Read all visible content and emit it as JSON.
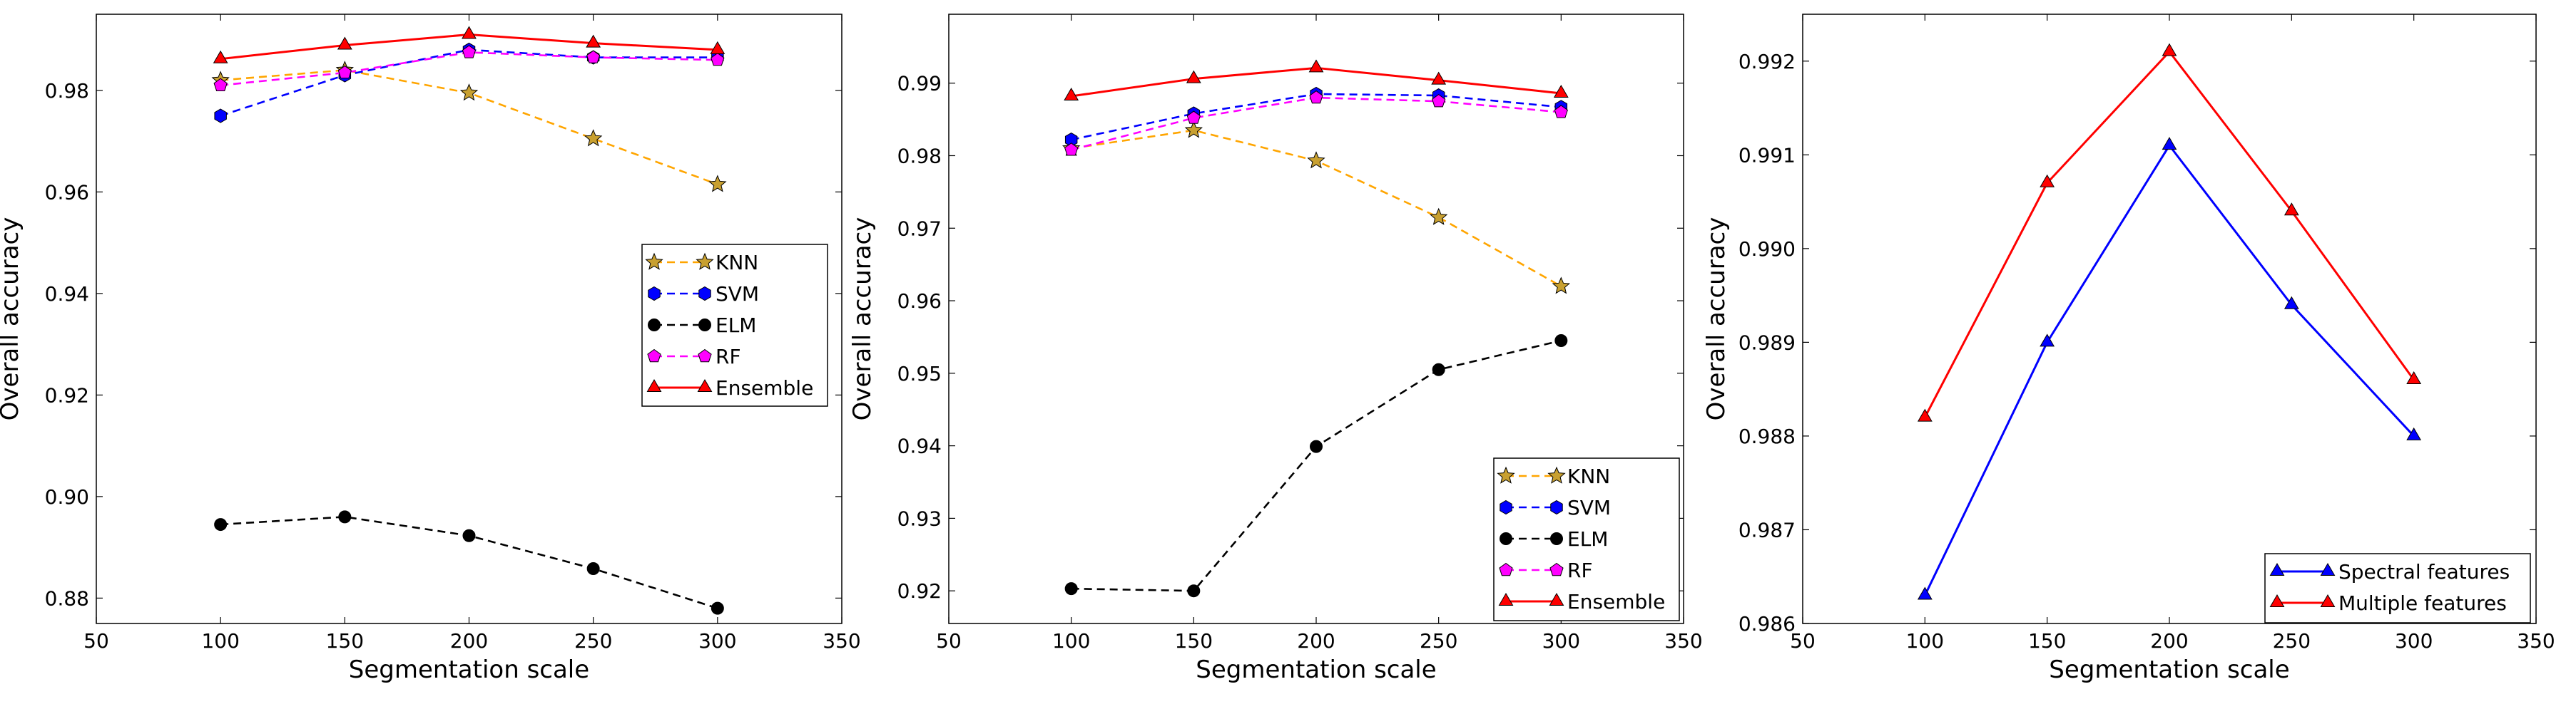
{
  "chart_data": [
    {
      "type": "line",
      "title": "",
      "xlabel": "Segmentation scale",
      "ylabel": "Overall accuracy",
      "xlim": [
        50,
        350
      ],
      "ylim": [
        0.875,
        0.995
      ],
      "xticks": [
        50,
        100,
        150,
        200,
        250,
        300,
        350
      ],
      "xtick_labels": [
        "50",
        "100",
        "150",
        "200",
        "250",
        "300",
        "350"
      ],
      "yticks": [
        0.88,
        0.9,
        0.92,
        0.94,
        0.96,
        0.98
      ],
      "ytick_labels": [
        "0.88",
        "0.90",
        "0.92",
        "0.94",
        "0.96",
        "0.98"
      ],
      "legend_position": "center-right",
      "x": [
        100,
        150,
        200,
        250,
        300
      ],
      "series": [
        {
          "name": "KNN",
          "color": "#FFA500",
          "dash": "dashed",
          "marker": "star",
          "marker_fill": "#C8A030",
          "values": [
            0.982,
            0.984,
            0.9795,
            0.9705,
            0.9615
          ]
        },
        {
          "name": "SVM",
          "color": "#0000FF",
          "dash": "dashed",
          "marker": "hexagon",
          "marker_fill": "#0000FF",
          "values": [
            0.975,
            0.983,
            0.988,
            0.9865,
            0.9865
          ]
        },
        {
          "name": "ELM",
          "color": "#000000",
          "dash": "dashed",
          "marker": "circle",
          "marker_fill": "#000000",
          "values": [
            0.8945,
            0.896,
            0.8923,
            0.8858,
            0.878
          ]
        },
        {
          "name": "RF",
          "color": "#FF00FF",
          "dash": "dashed",
          "marker": "pentagon",
          "marker_fill": "#FF00FF",
          "values": [
            0.981,
            0.9835,
            0.9875,
            0.9865,
            0.986
          ]
        },
        {
          "name": "Ensemble",
          "color": "#FF0000",
          "dash": "solid",
          "marker": "triangle",
          "marker_fill": "#FF0000",
          "values": [
            0.9862,
            0.9889,
            0.991,
            0.9893,
            0.988
          ]
        }
      ]
    },
    {
      "type": "line",
      "title": "",
      "xlabel": "Segmentation scale",
      "ylabel": "Overall accuracy",
      "xlim": [
        50,
        350
      ],
      "ylim": [
        0.9155,
        0.9995
      ],
      "xticks": [
        50,
        100,
        150,
        200,
        250,
        300,
        350
      ],
      "xtick_labels": [
        "50",
        "100",
        "150",
        "200",
        "250",
        "300",
        "350"
      ],
      "yticks": [
        0.92,
        0.93,
        0.94,
        0.95,
        0.96,
        0.97,
        0.98,
        0.99
      ],
      "ytick_labels": [
        "0.92",
        "0.93",
        "0.94",
        "0.95",
        "0.96",
        "0.97",
        "0.98",
        "0.99"
      ],
      "legend_position": "lower-right",
      "x": [
        100,
        150,
        200,
        250,
        300
      ],
      "series": [
        {
          "name": "KNN",
          "color": "#FFA500",
          "dash": "dashed",
          "marker": "star",
          "marker_fill": "#C8A030",
          "values": [
            0.981,
            0.9835,
            0.9793,
            0.9715,
            0.962
          ]
        },
        {
          "name": "SVM",
          "color": "#0000FF",
          "dash": "dashed",
          "marker": "hexagon",
          "marker_fill": "#0000FF",
          "values": [
            0.9822,
            0.9858,
            0.9885,
            0.9883,
            0.9867
          ]
        },
        {
          "name": "ELM",
          "color": "#000000",
          "dash": "dashed",
          "marker": "circle",
          "marker_fill": "#000000",
          "values": [
            0.9203,
            0.92,
            0.9399,
            0.9505,
            0.9545
          ]
        },
        {
          "name": "RF",
          "color": "#FF00FF",
          "dash": "dashed",
          "marker": "pentagon",
          "marker_fill": "#FF00FF",
          "values": [
            0.9808,
            0.9852,
            0.988,
            0.9875,
            0.986
          ]
        },
        {
          "name": "Ensemble",
          "color": "#FF0000",
          "dash": "solid",
          "marker": "triangle",
          "marker_fill": "#FF0000",
          "values": [
            0.9882,
            0.9906,
            0.9921,
            0.9904,
            0.9886
          ]
        }
      ]
    },
    {
      "type": "line",
      "title": "",
      "xlabel": "Segmentation scale",
      "ylabel": "Overall accuracy",
      "xlim": [
        50,
        350
      ],
      "ylim": [
        0.986,
        0.9925
      ],
      "xticks": [
        50,
        100,
        150,
        200,
        250,
        300,
        350
      ],
      "xtick_labels": [
        "50",
        "100",
        "150",
        "200",
        "250",
        "300",
        "350"
      ],
      "yticks": [
        0.986,
        0.987,
        0.988,
        0.989,
        0.99,
        0.991,
        0.992
      ],
      "ytick_labels": [
        "0.986",
        "0.987",
        "0.988",
        "0.989",
        "0.990",
        "0.991",
        "0.992"
      ],
      "legend_position": "lower-right",
      "x": [
        100,
        150,
        200,
        250,
        300
      ],
      "series": [
        {
          "name": "Spectral features",
          "color": "#0000FF",
          "dash": "solid",
          "marker": "triangle",
          "marker_fill": "#0000FF",
          "values": [
            0.9863,
            0.989,
            0.9911,
            0.9894,
            0.988
          ]
        },
        {
          "name": "Multiple features",
          "color": "#FF0000",
          "dash": "solid",
          "marker": "triangle",
          "marker_fill": "#FF0000",
          "values": [
            0.9882,
            0.9907,
            0.9921,
            0.9904,
            0.9886
          ]
        }
      ]
    }
  ]
}
